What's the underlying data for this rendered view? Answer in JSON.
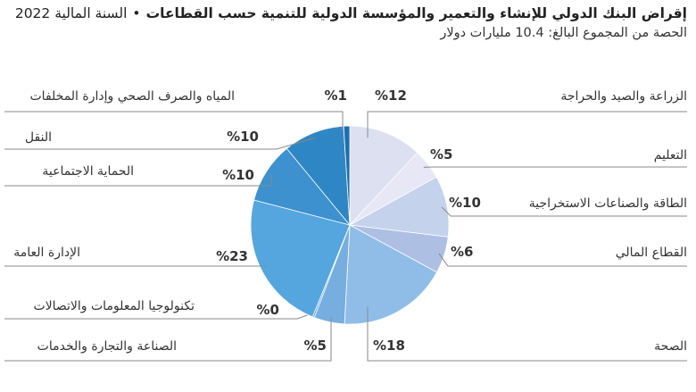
{
  "header": {
    "title": "إقراض البنك الدولي للإنشاء والتعمير والمؤسسة الدولية للتنمية حسب القطاعات",
    "separator": "•",
    "fiscal_year": "السنة المالية 2022",
    "subtitle": "الحصة من المجموع البالغ: 10.4 مليارات دولار"
  },
  "chart_data": {
    "type": "pie",
    "title": "إقراض البنك الدولي للإنشاء والتعمير والمؤسسة الدولية للتنمية حسب القطاعات",
    "subtitle": "الحصة من المجموع البالغ: 10.4 مليارات دولار",
    "slices": [
      {
        "name": "الزراعة والصيد والحراجة",
        "value": 12,
        "label": "%12",
        "color": "#dde0f1"
      },
      {
        "name": "التعليم",
        "value": 5,
        "label": "%5",
        "color": "#e7e7f5"
      },
      {
        "name": "الطاقة والصناعات الاستخراجية",
        "value": 10,
        "label": "%10",
        "color": "#c5d2ec"
      },
      {
        "name": "القطاع المالي",
        "value": 6,
        "label": "%6",
        "color": "#aebfe4"
      },
      {
        "name": "الصحة",
        "value": 18,
        "label": "%18",
        "color": "#8fbde7"
      },
      {
        "name": "الصناعة والتجارة والخدمات",
        "value": 5,
        "label": "%5",
        "color": "#76aee0"
      },
      {
        "name": "تكنولوجيا المعلومات والاتصالات",
        "value": 0.3,
        "label": "%0",
        "color": "#66a6dc"
      },
      {
        "name": "الإدارة العامة",
        "value": 23,
        "label": "%23",
        "color": "#55a5df"
      },
      {
        "name": "الحماية الاجتماعية",
        "value": 10,
        "label": "%10",
        "color": "#3c91ce"
      },
      {
        "name": "النقل",
        "value": 10,
        "label": "%10",
        "color": "#2f86c4"
      },
      {
        "name": "المياه والصرف الصحي وإدارة المخلفات",
        "value": 1,
        "label": "%1",
        "color": "#1d6eb0"
      }
    ]
  }
}
